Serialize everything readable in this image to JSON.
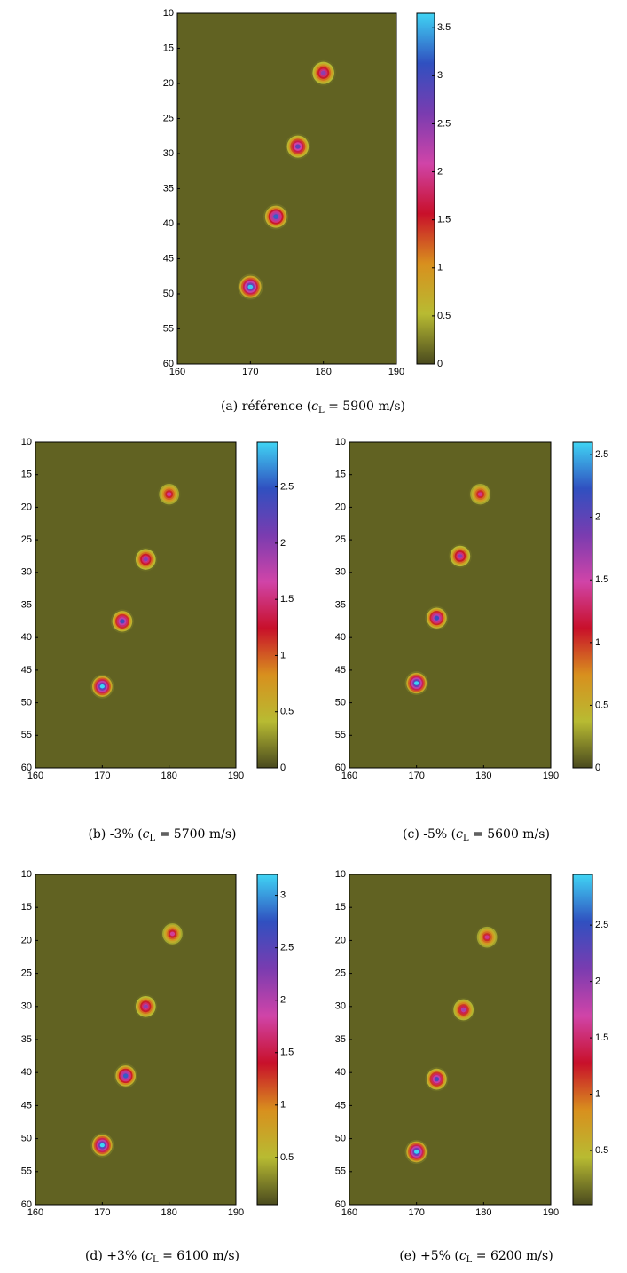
{
  "chart_data": [
    {
      "type": "heatmap",
      "caption": [
        "(a)  référence (",
        "c",
        "L",
        " = 5900 m/s)"
      ],
      "xlim": [
        160,
        190
      ],
      "xticks": [
        160,
        170,
        180,
        190
      ],
      "ylim": [
        60,
        10
      ],
      "yticks": [
        10,
        15,
        20,
        25,
        30,
        35,
        40,
        45,
        50,
        55,
        60
      ],
      "zlim": [
        0,
        3.65
      ],
      "zticks": [
        0,
        0.5,
        1,
        1.5,
        2,
        2.5,
        3,
        3.5
      ],
      "x": [
        170,
        173.5,
        176.5,
        180
      ],
      "y": [
        49,
        39,
        29,
        18.5
      ],
      "values": [
        3.6,
        3.2,
        2.8,
        2.5
      ]
    },
    {
      "type": "heatmap",
      "caption": [
        "(b)  -3% (",
        "c",
        "L",
        " = 5700 m/s)"
      ],
      "xlim": [
        160,
        190
      ],
      "xticks": [
        160,
        170,
        180,
        190
      ],
      "ylim": [
        60,
        10
      ],
      "yticks": [
        10,
        15,
        20,
        25,
        30,
        35,
        40,
        45,
        50,
        55,
        60
      ],
      "zlim": [
        0,
        2.9
      ],
      "zticks": [
        0,
        0.5,
        1,
        1.5,
        2,
        2.5
      ],
      "x": [
        170,
        173,
        176.5,
        180
      ],
      "y": [
        47.5,
        37.5,
        28,
        18
      ],
      "values": [
        2.9,
        2.4,
        2.0,
        1.6
      ]
    },
    {
      "type": "heatmap",
      "caption": [
        "(c)  -5% (",
        "c",
        "L",
        " = 5600 m/s)"
      ],
      "xlim": [
        160,
        190
      ],
      "xticks": [
        160,
        170,
        180,
        190
      ],
      "ylim": [
        60,
        10
      ],
      "yticks": [
        10,
        15,
        20,
        25,
        30,
        35,
        40,
        45,
        50,
        55,
        60
      ],
      "zlim": [
        0,
        2.6
      ],
      "zticks": [
        0,
        0.5,
        1,
        1.5,
        2,
        2.5
      ],
      "x": [
        170,
        173,
        176.5,
        179.5
      ],
      "y": [
        47,
        37,
        27.5,
        18
      ],
      "values": [
        2.6,
        2.2,
        1.8,
        1.4
      ]
    },
    {
      "type": "heatmap",
      "caption": [
        "(d)  +3% (",
        "c",
        "L",
        " = 6100 m/s)"
      ],
      "xlim": [
        160,
        190
      ],
      "xticks": [
        160,
        170,
        180,
        190
      ],
      "ylim": [
        60,
        10
      ],
      "yticks": [
        10,
        15,
        20,
        25,
        30,
        35,
        40,
        45,
        50,
        55,
        60
      ],
      "zlim": [
        0.05,
        3.2
      ],
      "zticks": [
        0.5,
        1,
        1.5,
        2,
        2.5,
        3
      ],
      "x": [
        170,
        173.5,
        176.5,
        180.5
      ],
      "y": [
        51,
        40.5,
        30,
        19
      ],
      "values": [
        3.2,
        2.8,
        2.2,
        1.8
      ]
    },
    {
      "type": "heatmap",
      "caption": [
        "(e)  +5% (",
        "c",
        "L",
        " = 6200 m/s)"
      ],
      "xlim": [
        160,
        190
      ],
      "xticks": [
        160,
        170,
        180,
        190
      ],
      "ylim": [
        60,
        10
      ],
      "yticks": [
        10,
        15,
        20,
        25,
        30,
        35,
        40,
        45,
        50,
        55,
        60
      ],
      "zlim": [
        0.02,
        2.95
      ],
      "zticks": [
        0.5,
        1,
        1.5,
        2,
        2.5
      ],
      "x": [
        170,
        173,
        177,
        180.5
      ],
      "y": [
        52,
        41,
        30.5,
        19.5
      ],
      "values": [
        2.95,
        2.4,
        1.9,
        1.6
      ]
    }
  ],
  "colormap": [
    "#4a4a1e",
    "#b8bb32",
    "#d8901e",
    "#c8102a",
    "#d044a8",
    "#7a3cb0",
    "#3050c0",
    "#40d4f4"
  ]
}
